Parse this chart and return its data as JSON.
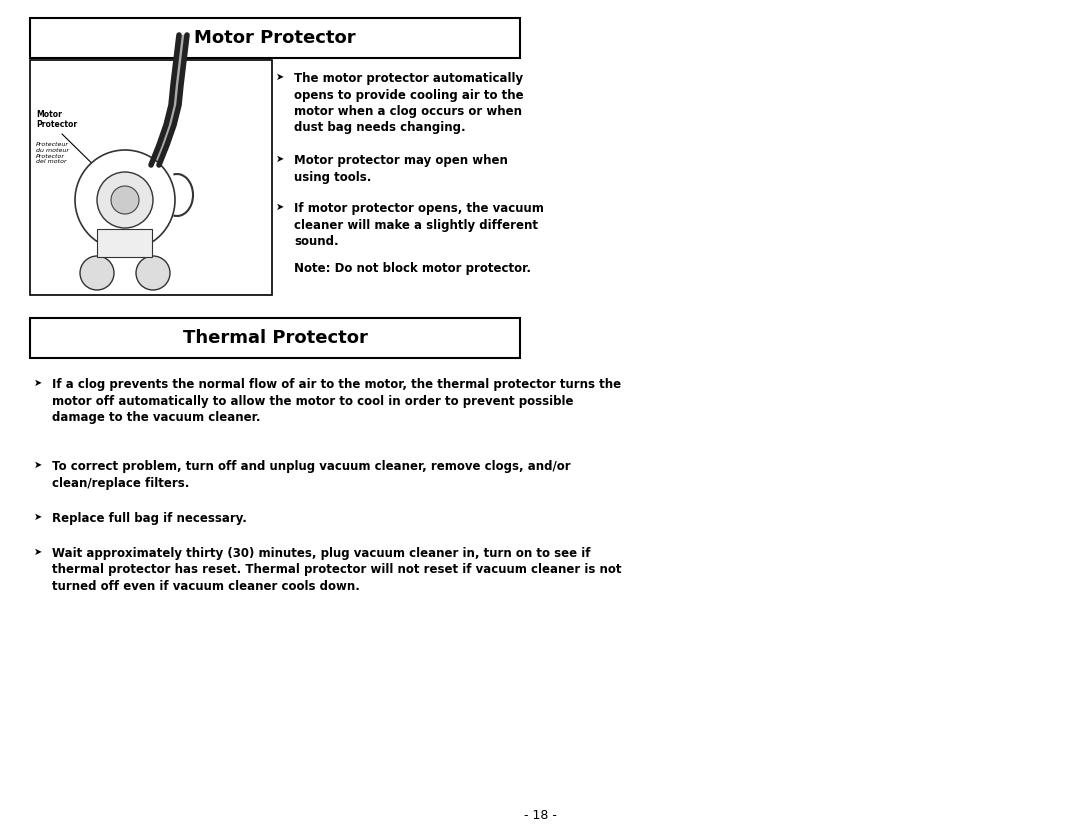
{
  "bg_color": "#ffffff",
  "page_width": 10.8,
  "page_height": 8.34,
  "motor_protector_title": "Motor Protector",
  "thermal_protector_title": "Thermal Protector",
  "bullet": "➤",
  "page_num_text": "- 18 -"
}
